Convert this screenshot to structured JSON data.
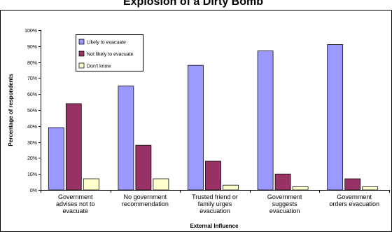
{
  "chart_data": {
    "type": "bar",
    "title": "Explosion of a Dirty Bomb",
    "xlabel": "External Influence",
    "ylabel": "Percentage of respondents",
    "ylim": [
      0,
      100
    ],
    "yticks": [
      "0%",
      "10%",
      "20%",
      "30%",
      "40%",
      "50%",
      "60%",
      "70%",
      "80%",
      "90%",
      "100%"
    ],
    "categories": [
      [
        "Government",
        "advises not to",
        "evacuate"
      ],
      [
        "No government",
        "recommendation"
      ],
      [
        "Trusted friend or",
        "family urges",
        "evacuation"
      ],
      [
        "Government",
        "suggests",
        "evacuation"
      ],
      [
        "Government",
        "orders evacuation"
      ]
    ],
    "series": [
      {
        "name": "Likely to evacuate",
        "color": "#9999ff",
        "values": [
          39,
          65,
          78,
          87,
          91
        ]
      },
      {
        "name": "Not likely to evacuate",
        "color": "#993366",
        "values": [
          54,
          28,
          18,
          10,
          7
        ]
      },
      {
        "name": "Don't know",
        "color": "#ffffcc",
        "values": [
          7,
          7,
          3,
          2,
          2
        ]
      }
    ],
    "legend_position": "top-left",
    "grid": false
  }
}
